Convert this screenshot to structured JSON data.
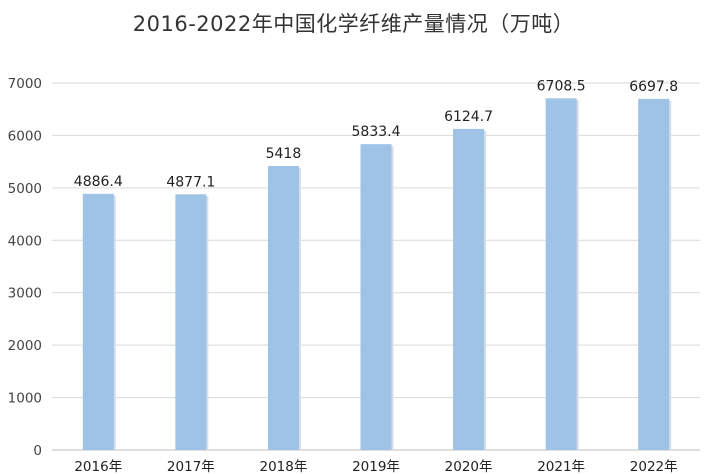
{
  "colors": {
    "bar": "#9fc2e7",
    "bar_shadow": "#d6dde6",
    "grid": "#d9d9d9",
    "axis": "#bfbfbf"
  },
  "chart_data": {
    "type": "bar",
    "title": "2016-2022年中国化学纤维产量情况（万吨）",
    "categories": [
      "2016年",
      "2017年",
      "2018年",
      "2019年",
      "2020年",
      "2021年",
      "2022年"
    ],
    "values": [
      4886.4,
      4877.1,
      5418,
      5833.4,
      6124.7,
      6708.5,
      6697.8
    ],
    "value_labels": [
      "4886.4",
      "4877.1",
      "5418",
      "5833.4",
      "6124.7",
      "6708.5",
      "6697.8"
    ],
    "yticks": [
      0,
      1000,
      2000,
      3000,
      4000,
      5000,
      6000,
      7000
    ],
    "ylim": [
      0,
      7000
    ],
    "grid": true,
    "legend": "none"
  }
}
